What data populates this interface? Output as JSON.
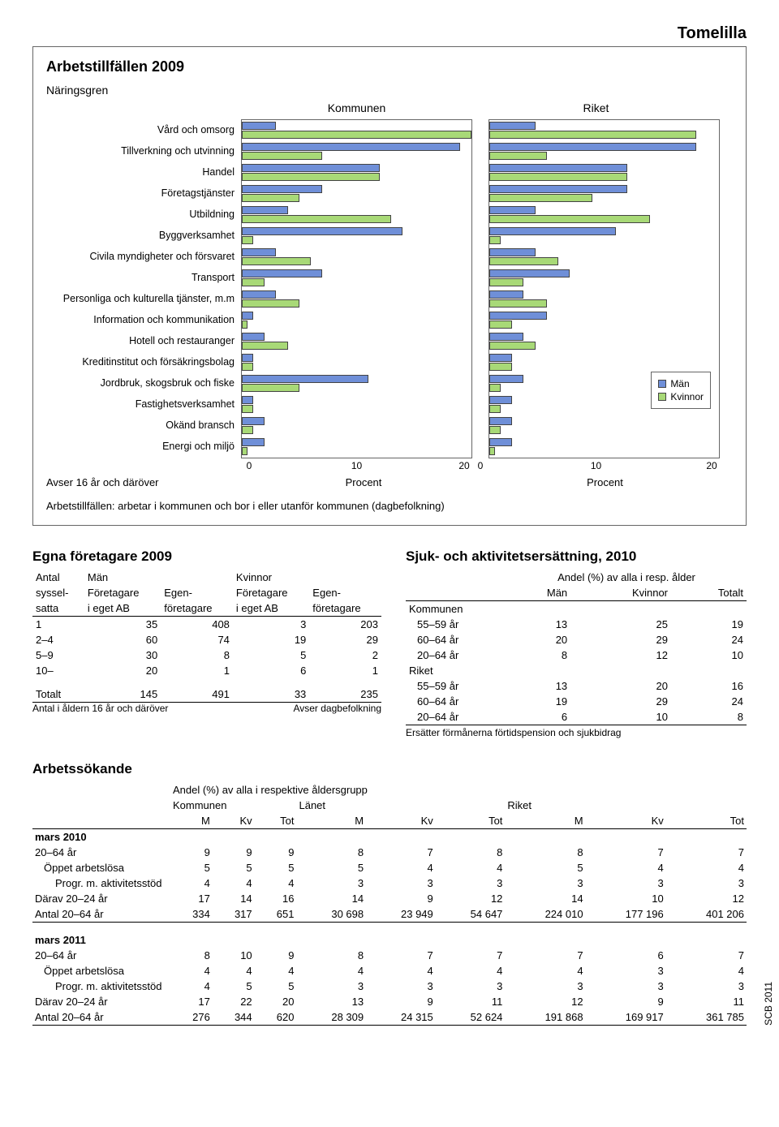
{
  "region": "Tomelilla",
  "colors": {
    "male": "#6f8fd8",
    "female": "#a8d977",
    "border": "#444444"
  },
  "chart": {
    "title": "Arbetstillfällen 2009",
    "subtitle": "Näringsgren",
    "col_labels": {
      "kommunen": "Kommunen",
      "riket": "Riket"
    },
    "legend": {
      "male": "Män",
      "female": "Kvinnor"
    },
    "xmax": 20,
    "ticks": [
      "0",
      "10",
      "20"
    ],
    "categories": [
      {
        "label": "Vård och omsorg",
        "k_m": 3,
        "k_f": 20,
        "r_m": 4,
        "r_f": 18
      },
      {
        "label": "Tillverkning och utvinning",
        "k_m": 19,
        "k_f": 7,
        "r_m": 18,
        "r_f": 5
      },
      {
        "label": "Handel",
        "k_m": 12,
        "k_f": 12,
        "r_m": 12,
        "r_f": 12
      },
      {
        "label": "Företagstjänster",
        "k_m": 7,
        "k_f": 5,
        "r_m": 12,
        "r_f": 9
      },
      {
        "label": "Utbildning",
        "k_m": 4,
        "k_f": 13,
        "r_m": 4,
        "r_f": 14
      },
      {
        "label": "Byggverksamhet",
        "k_m": 14,
        "k_f": 1,
        "r_m": 11,
        "r_f": 1
      },
      {
        "label": "Civila myndigheter och försvaret",
        "k_m": 3,
        "k_f": 6,
        "r_m": 4,
        "r_f": 6
      },
      {
        "label": "Transport",
        "k_m": 7,
        "k_f": 2,
        "r_m": 7,
        "r_f": 3
      },
      {
        "label": "Personliga och kulturella tjänster, m.m",
        "k_m": 3,
        "k_f": 5,
        "r_m": 3,
        "r_f": 5
      },
      {
        "label": "Information och kommunikation",
        "k_m": 1,
        "k_f": 0.5,
        "r_m": 5,
        "r_f": 2
      },
      {
        "label": "Hotell och restauranger",
        "k_m": 2,
        "k_f": 4,
        "r_m": 3,
        "r_f": 4
      },
      {
        "label": "Kreditinstitut och försäkringsbolag",
        "k_m": 1,
        "k_f": 1,
        "r_m": 2,
        "r_f": 2
      },
      {
        "label": "Jordbruk, skogsbruk och fiske",
        "k_m": 11,
        "k_f": 5,
        "r_m": 3,
        "r_f": 1
      },
      {
        "label": "Fastighetsverksamhet",
        "k_m": 1,
        "k_f": 1,
        "r_m": 2,
        "r_f": 1
      },
      {
        "label": "Okänd bransch",
        "k_m": 2,
        "k_f": 1,
        "r_m": 2,
        "r_f": 1
      },
      {
        "label": "Energi och miljö",
        "k_m": 2,
        "k_f": 0.5,
        "r_m": 2,
        "r_f": 0.5
      }
    ],
    "footer_left": "Avser 16 år och däröver",
    "footer_procent": "Procent",
    "note": "Arbetstillfällen: arbetar i kommunen och bor i eller utanför kommunen (dagbefolkning)"
  },
  "egna": {
    "title": "Egna företagare 2009",
    "head1": {
      "antal": "Antal",
      "man": "Män",
      "kvinnor": "Kvinnor"
    },
    "head2": {
      "syssel": "syssel-",
      "foretagare": "Företagare",
      "egen": "Egen-"
    },
    "head3": {
      "satta": "satta",
      "ieget": "i eget AB",
      "foretagare": "företagare"
    },
    "rows": [
      {
        "g": "1",
        "v": [
          "35",
          "408",
          "3",
          "203"
        ]
      },
      {
        "g": "2–4",
        "v": [
          "60",
          "74",
          "19",
          "29"
        ]
      },
      {
        "g": "5–9",
        "v": [
          "30",
          "8",
          "5",
          "2"
        ]
      },
      {
        "g": "10–",
        "v": [
          "20",
          "1",
          "6",
          "1"
        ]
      }
    ],
    "tot_label": "Totalt",
    "tot": [
      "145",
      "491",
      "33",
      "235"
    ],
    "note1": "Antal i åldern 16 år och däröver",
    "note2": "Avser dagbefolkning"
  },
  "sjuk": {
    "title": "Sjuk- och aktivitetsersättning,  2010",
    "sub": "Andel (%) av alla i resp. ålder",
    "head": {
      "man": "Män",
      "kvinnor": "Kvinnor",
      "totalt": "Totalt"
    },
    "kommunen_label": "Kommunen",
    "riket_label": "Riket",
    "k_rows": [
      {
        "g": "55–59 år",
        "v": [
          "13",
          "25",
          "19"
        ]
      },
      {
        "g": "60–64 år",
        "v": [
          "20",
          "29",
          "24"
        ]
      },
      {
        "g": "20–64 år",
        "v": [
          "8",
          "12",
          "10"
        ]
      }
    ],
    "r_rows": [
      {
        "g": "55–59 år",
        "v": [
          "13",
          "20",
          "16"
        ]
      },
      {
        "g": "60–64 år",
        "v": [
          "19",
          "29",
          "24"
        ]
      },
      {
        "g": "20–64 år",
        "v": [
          "6",
          "10",
          "8"
        ]
      }
    ],
    "note": "Ersätter förmånerna förtidspension och sjukbidrag"
  },
  "arbetssokande": {
    "title": "Arbetssökande",
    "sub": "Andel (%) av alla i respektive åldersgrupp",
    "groups": {
      "kommunen": "Kommunen",
      "lanet": "Länet",
      "riket": "Riket"
    },
    "cols": {
      "m": "M",
      "kv": "Kv",
      "tot": "Tot"
    },
    "mars2010": "mars 2010",
    "mars2011": "mars 2011",
    "rows2010": [
      {
        "g": "20–64 år",
        "cls": "",
        "v": [
          "9",
          "9",
          "9",
          "8",
          "7",
          "8",
          "8",
          "7",
          "7"
        ]
      },
      {
        "g": "Öppet arbetslösa",
        "cls": "indent",
        "v": [
          "5",
          "5",
          "5",
          "5",
          "4",
          "4",
          "5",
          "4",
          "4"
        ]
      },
      {
        "g": "Progr. m. aktivitetsstöd",
        "cls": "indent2",
        "v": [
          "4",
          "4",
          "4",
          "3",
          "3",
          "3",
          "3",
          "3",
          "3"
        ]
      },
      {
        "g": "Därav 20–24 år",
        "cls": "",
        "v": [
          "17",
          "14",
          "16",
          "14",
          "9",
          "12",
          "14",
          "10",
          "12"
        ]
      },
      {
        "g": "Antal 20–64 år",
        "cls": "",
        "v": [
          "334",
          "317",
          "651",
          "30 698",
          "23 949",
          "54 647",
          "224 010",
          "177 196",
          "401 206"
        ]
      }
    ],
    "rows2011": [
      {
        "g": "20–64 år",
        "cls": "",
        "v": [
          "8",
          "10",
          "9",
          "8",
          "7",
          "7",
          "7",
          "6",
          "7"
        ]
      },
      {
        "g": "Öppet arbetslösa",
        "cls": "indent",
        "v": [
          "4",
          "4",
          "4",
          "4",
          "4",
          "4",
          "4",
          "3",
          "4"
        ]
      },
      {
        "g": "Progr. m. aktivitetsstöd",
        "cls": "indent2",
        "v": [
          "4",
          "5",
          "5",
          "3",
          "3",
          "3",
          "3",
          "3",
          "3"
        ]
      },
      {
        "g": "Därav 20–24 år",
        "cls": "",
        "v": [
          "17",
          "22",
          "20",
          "13",
          "9",
          "11",
          "12",
          "9",
          "11"
        ]
      },
      {
        "g": "Antal 20–64 år",
        "cls": "",
        "v": [
          "276",
          "344",
          "620",
          "28 309",
          "24 315",
          "52 624",
          "191 868",
          "169 917",
          "361 785"
        ]
      }
    ]
  },
  "scb": "SCB 2011"
}
